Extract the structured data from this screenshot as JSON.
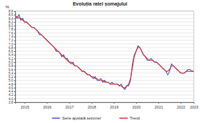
{
  "chart_data": {
    "type": "line",
    "title": "Evoluția ratei șomajului",
    "y_label": "%",
    "categories": [
      null,
      null,
      null,
      null,
      null,
      "2015",
      null,
      null,
      null,
      null,
      null,
      null,
      null,
      null,
      null,
      null,
      null,
      "2016",
      null,
      null,
      null,
      null,
      null,
      null,
      null,
      null,
      null,
      null,
      null,
      "2017",
      null,
      null,
      null,
      null,
      null,
      null,
      null,
      null,
      null,
      null,
      null,
      "2018",
      null,
      null,
      null,
      null,
      null,
      null,
      null,
      null,
      null,
      null,
      null,
      "2019",
      null,
      null,
      null,
      null,
      null,
      null,
      null,
      null,
      null,
      null,
      null,
      "2020",
      null,
      null,
      null,
      null,
      null,
      null,
      null,
      null,
      null,
      null,
      null,
      "2021",
      null,
      null,
      null,
      null,
      null,
      null,
      null,
      null,
      null,
      null,
      null,
      "2022",
      null,
      null,
      null,
      null,
      null,
      null,
      "2023"
    ],
    "series": [
      {
        "name": "Serie ajustată sezonier",
        "color": "#3b5bbf",
        "values": [
          8.5,
          8.4,
          8.6,
          8.3,
          8.4,
          8.2,
          8.2,
          8.1,
          8.0,
          7.9,
          7.9,
          7.8,
          7.7,
          7.5,
          7.5,
          7.4,
          7.3,
          7.2,
          7.1,
          7.0,
          6.9,
          6.8,
          6.6,
          6.6,
          6.5,
          6.3,
          6.4,
          6.2,
          6.2,
          6.0,
          5.9,
          6.0,
          5.8,
          5.8,
          5.7,
          5.6,
          5.5,
          5.5,
          5.4,
          5.3,
          5.3,
          5.2,
          5.1,
          5.2,
          5.0,
          5.0,
          5.1,
          4.9,
          5.0,
          4.9,
          4.9,
          4.8,
          4.9,
          4.8,
          4.8,
          4.8,
          4.7,
          4.8,
          4.6,
          4.5,
          4.7,
          4.7,
          5.0,
          5.9,
          6.4,
          6.6,
          6.9,
          6.8,
          6.6,
          6.4,
          6.3,
          6.1,
          6.1,
          6.2,
          6.1,
          6.0,
          6.0,
          5.9,
          5.8,
          5.7,
          5.6,
          5.5,
          5.3,
          5.5,
          5.9,
          5.8,
          5.7,
          5.6,
          5.5,
          5.4,
          5.4,
          5.4,
          5.5,
          5.6,
          5.6,
          5.5,
          5.5
        ]
      },
      {
        "name": "Trend",
        "color": "#e0262b",
        "values": [
          8.5,
          8.5,
          8.4,
          8.4,
          8.3,
          8.2,
          8.2,
          8.1,
          8.0,
          7.9,
          7.9,
          7.8,
          7.7,
          7.6,
          7.5,
          7.4,
          7.3,
          7.2,
          7.1,
          7.0,
          6.9,
          6.8,
          6.7,
          6.6,
          6.5,
          6.4,
          6.3,
          6.2,
          6.1,
          6.0,
          6.0,
          5.9,
          5.8,
          5.8,
          5.7,
          5.6,
          5.5,
          5.5,
          5.4,
          5.3,
          5.3,
          5.2,
          5.2,
          5.1,
          5.1,
          5.0,
          5.0,
          5.0,
          4.9,
          4.9,
          4.9,
          4.8,
          4.8,
          4.8,
          4.8,
          4.8,
          4.7,
          4.7,
          4.6,
          4.6,
          4.7,
          4.8,
          5.1,
          5.7,
          6.3,
          6.6,
          6.8,
          6.8,
          6.6,
          6.4,
          6.3,
          6.2,
          6.1,
          6.1,
          6.1,
          6.0,
          6.0,
          5.9,
          5.8,
          5.7,
          5.6,
          5.5,
          5.5,
          5.6,
          5.8,
          5.8,
          5.7,
          5.6,
          5.5,
          5.4,
          5.4,
          5.4,
          5.5,
          5.5,
          5.5,
          5.5,
          5.5
        ]
      }
    ],
    "ylim": [
      3.8,
      8.8
    ],
    "yticks": [
      3.8,
      {
        "value": 4,
        "label": "4.0"
      },
      4.2,
      4.4,
      4.6,
      4.8,
      {
        "value": 5,
        "label": "5.0"
      },
      5.2,
      5.4,
      5.6,
      5.8,
      {
        "value": 6,
        "label": "6.0"
      },
      6.2,
      6.4,
      6.6,
      6.8,
      {
        "value": 7,
        "label": "7.0"
      },
      7.2,
      7.4,
      7.6,
      7.8,
      {
        "value": 8,
        "label": "8.0"
      },
      8.2,
      8.4,
      8.6,
      8.8
    ],
    "grid": true,
    "legend": "bottom"
  }
}
